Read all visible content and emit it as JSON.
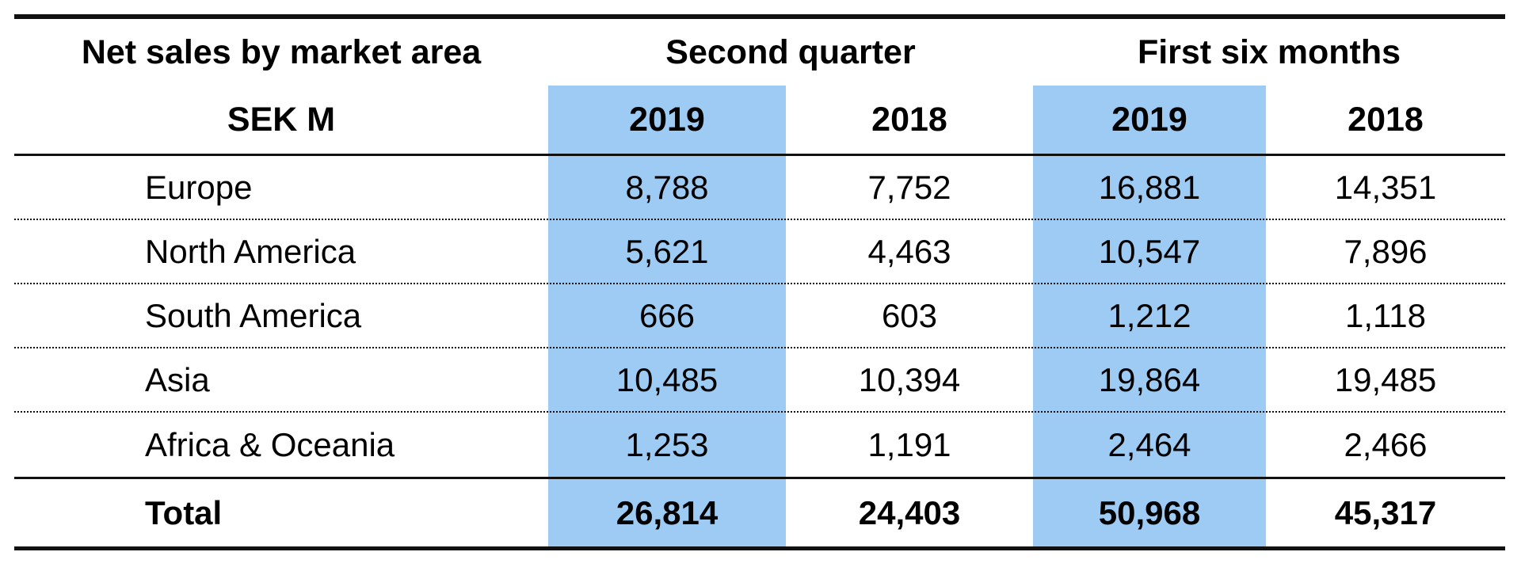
{
  "table": {
    "title": "Net sales by market area",
    "unit_label": "SEK M",
    "group_headers": [
      "Second quarter",
      "First six months"
    ],
    "year_headers": [
      "2019",
      "2018",
      "2019",
      "2018"
    ],
    "rows": [
      {
        "label": "Europe",
        "values": [
          "8,788",
          "7,752",
          "16,881",
          "14,351"
        ]
      },
      {
        "label": "North America",
        "values": [
          "5,621",
          "4,463",
          "10,547",
          "7,896"
        ]
      },
      {
        "label": "South America",
        "values": [
          "666",
          "603",
          "1,212",
          "1,118"
        ]
      },
      {
        "label": "Asia",
        "values": [
          "10,485",
          "10,394",
          "19,864",
          "19,485"
        ]
      },
      {
        "label": "Africa & Oceania",
        "values": [
          "1,253",
          "1,191",
          "2,464",
          "2,466"
        ]
      }
    ],
    "total_row": {
      "label": "Total",
      "values": [
        "26,814",
        "24,403",
        "50,968",
        "45,317"
      ]
    },
    "highlight_color": "#9ECBF3"
  },
  "chart_data": {
    "type": "table",
    "title": "Net sales by market area",
    "unit": "SEK M",
    "columns": [
      "Second quarter 2019",
      "Second quarter 2018",
      "First six months 2019",
      "First six months 2018"
    ],
    "highlighted_columns": [
      "Second quarter 2019",
      "First six months 2019"
    ],
    "rows": [
      {
        "label": "Europe",
        "values": [
          8788,
          7752,
          16881,
          14351
        ]
      },
      {
        "label": "North America",
        "values": [
          5621,
          4463,
          10547,
          7896
        ]
      },
      {
        "label": "South America",
        "values": [
          666,
          603,
          1212,
          1118
        ]
      },
      {
        "label": "Asia",
        "values": [
          10485,
          10394,
          19864,
          19485
        ]
      },
      {
        "label": "Africa & Oceania",
        "values": [
          1253,
          1191,
          2464,
          2466
        ]
      },
      {
        "label": "Total",
        "values": [
          26814,
          24403,
          50968,
          45317
        ]
      }
    ]
  }
}
